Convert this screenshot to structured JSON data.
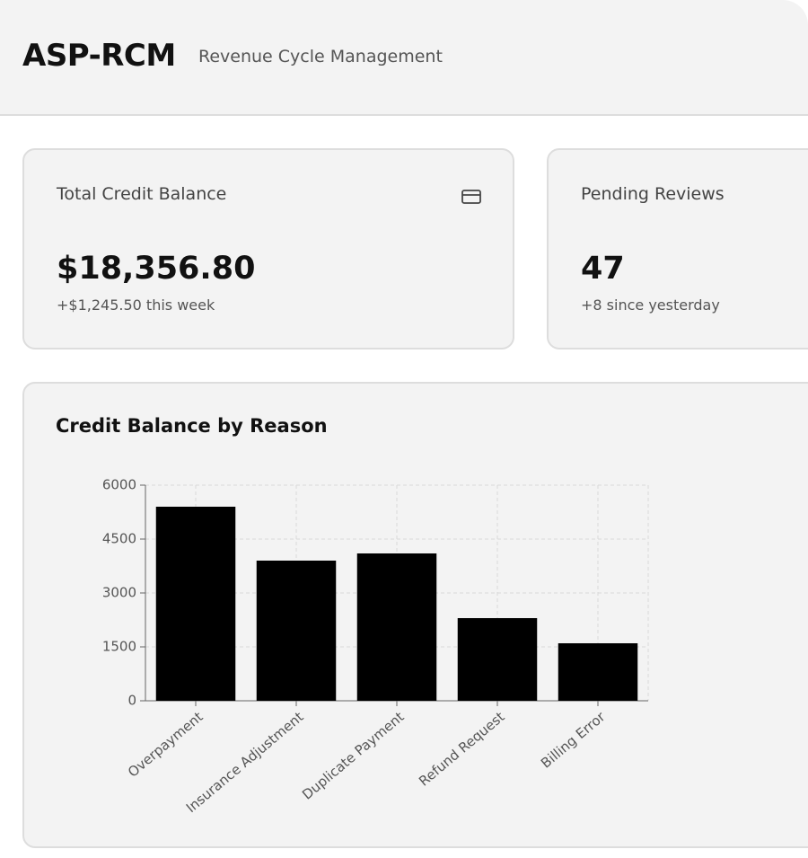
{
  "header": {
    "title": "ASP-RCM",
    "subtitle": "Revenue Cycle Management"
  },
  "cards": [
    {
      "title": "Total Credit Balance",
      "value": "$18,356.80",
      "change": "+$1,245.50 this week"
    },
    {
      "title": "Pending Reviews",
      "value": "47",
      "change": "+8 since yesterday"
    }
  ],
  "chart_data": {
    "type": "bar",
    "title": "Credit Balance by Reason",
    "categories": [
      "Overpayment",
      "Insurance Adjustment",
      "Duplicate Payment",
      "Refund Request",
      "Billing Error"
    ],
    "values": [
      5400,
      3900,
      4100,
      2300,
      1600
    ],
    "color": "#000000",
    "ylim": [
      0,
      6000
    ],
    "yticks": [
      0,
      1500,
      3000,
      4500,
      6000
    ],
    "grid": true
  }
}
